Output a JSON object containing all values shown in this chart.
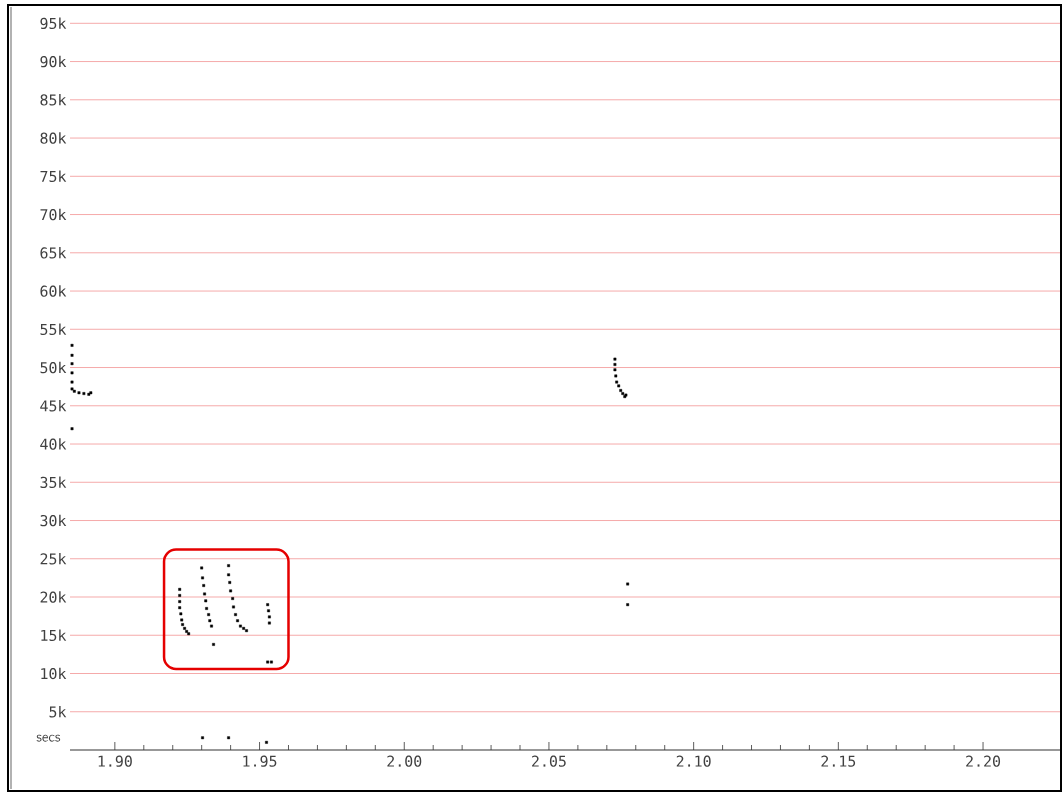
{
  "chart_data": {
    "type": "scatter",
    "xlabel": "secs",
    "x": [
      1.8852,
      1.8852,
      1.8852,
      1.8852,
      1.8852,
      1.8852,
      1.886,
      1.8876,
      1.8893,
      1.891,
      1.8917,
      1.8852,
      1.9224,
      1.9224,
      1.9224,
      1.9224,
      1.9228,
      1.9231,
      1.9234,
      1.9241,
      1.9248,
      1.9255,
      1.93,
      1.9303,
      1.9307,
      1.931,
      1.9314,
      1.9317,
      1.9324,
      1.9328,
      1.9334,
      1.9341,
      1.9393,
      1.9393,
      1.9397,
      1.94,
      1.9407,
      1.941,
      1.9417,
      1.9424,
      1.9434,
      1.9445,
      1.9455,
      1.9528,
      1.9531,
      1.9534,
      1.9534,
      1.9528,
      1.9541,
      1.9303,
      1.9393,
      1.9524,
      2.0728,
      2.0728,
      2.0728,
      2.0731,
      2.0734,
      2.0741,
      2.0748,
      2.0755,
      2.0762,
      2.0766,
      2.0772,
      2.0772
    ],
    "values": [
      52900,
      51600,
      50500,
      49300,
      48100,
      47200,
      46900,
      46700,
      46600,
      46500,
      46700,
      42000,
      21000,
      20200,
      19400,
      18600,
      17800,
      17000,
      16400,
      15900,
      15500,
      15200,
      23800,
      22500,
      21500,
      20400,
      19500,
      18500,
      17700,
      16900,
      16200,
      13800,
      24100,
      22900,
      21900,
      20800,
      19800,
      18700,
      17700,
      16900,
      16200,
      15900,
      15600,
      19000,
      18200,
      17400,
      16600,
      11500,
      11500,
      1600,
      1600,
      1000,
      51100,
      50400,
      49700,
      48900,
      48100,
      47600,
      47000,
      46600,
      46200,
      46400,
      21700,
      19000
    ],
    "color": "#000000",
    "marker": "square",
    "grid": "y",
    "xlim": [
      1.8845,
      2.2266
    ],
    "ylim": [
      0,
      97000
    ],
    "xticks": [
      {
        "value": 1.9,
        "label": "1.90"
      },
      {
        "value": 1.95,
        "label": "1.95"
      },
      {
        "value": 2.0,
        "label": "2.00"
      },
      {
        "value": 2.05,
        "label": "2.05"
      },
      {
        "value": 2.1,
        "label": "2.10"
      },
      {
        "value": 2.15,
        "label": "2.15"
      },
      {
        "value": 2.2,
        "label": "2.20"
      }
    ],
    "yticks": [
      {
        "value": 5000,
        "label": "5k"
      },
      {
        "value": 10000,
        "label": "10k"
      },
      {
        "value": 15000,
        "label": "15k"
      },
      {
        "value": 20000,
        "label": "20k"
      },
      {
        "value": 25000,
        "label": "25k"
      },
      {
        "value": 30000,
        "label": "30k"
      },
      {
        "value": 35000,
        "label": "35k"
      },
      {
        "value": 40000,
        "label": "40k"
      },
      {
        "value": 45000,
        "label": "45k"
      },
      {
        "value": 50000,
        "label": "50k"
      },
      {
        "value": 55000,
        "label": "55k"
      },
      {
        "value": 60000,
        "label": "60k"
      },
      {
        "value": 65000,
        "label": "65k"
      },
      {
        "value": 70000,
        "label": "70k"
      },
      {
        "value": 75000,
        "label": "75k"
      },
      {
        "value": 80000,
        "label": "80k"
      },
      {
        "value": 85000,
        "label": "85k"
      },
      {
        "value": 90000,
        "label": "90k"
      },
      {
        "value": 95000,
        "label": "95k"
      }
    ]
  }
}
